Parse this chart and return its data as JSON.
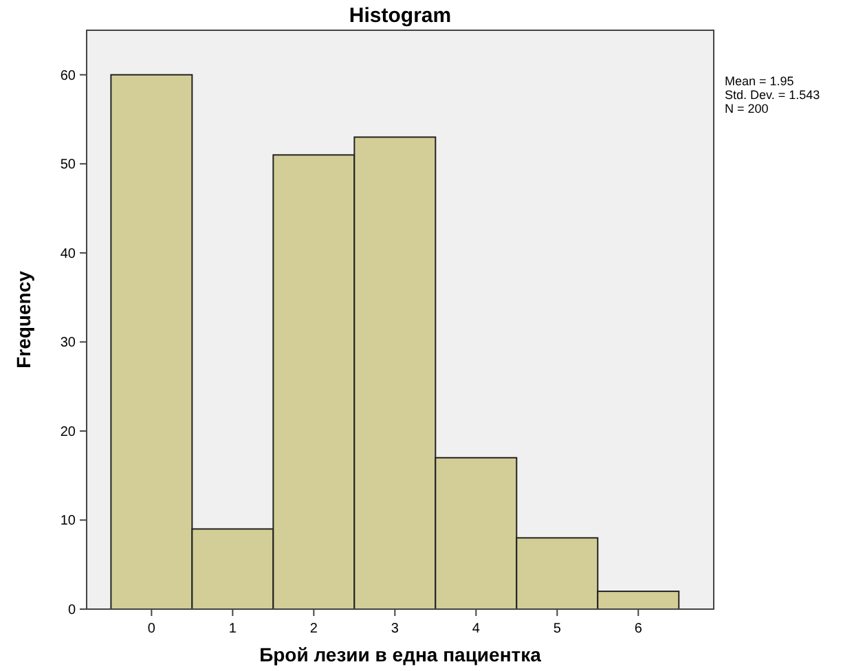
{
  "chart_data": {
    "type": "histogram",
    "title": "Histogram",
    "xlabel": "Брой лезии в една пациентка",
    "ylabel": "Frequency",
    "bins": [
      -0.5,
      0.5,
      1.5,
      2.5,
      3.5,
      4.5,
      5.5,
      6.5
    ],
    "values": [
      60,
      9,
      51,
      53,
      17,
      8,
      2
    ],
    "color": "#d3ce97",
    "xlim": [
      -0.8,
      6.93
    ],
    "xticks": [
      0,
      1,
      2,
      3,
      4,
      5,
      6
    ],
    "ylim": [
      0,
      65
    ],
    "yticks": [
      0,
      10,
      20,
      30,
      40,
      50,
      60
    ],
    "grid": false,
    "annotations": [
      "Mean = 1.95",
      "Std. Dev. = 1.543",
      "N = 200"
    ]
  }
}
